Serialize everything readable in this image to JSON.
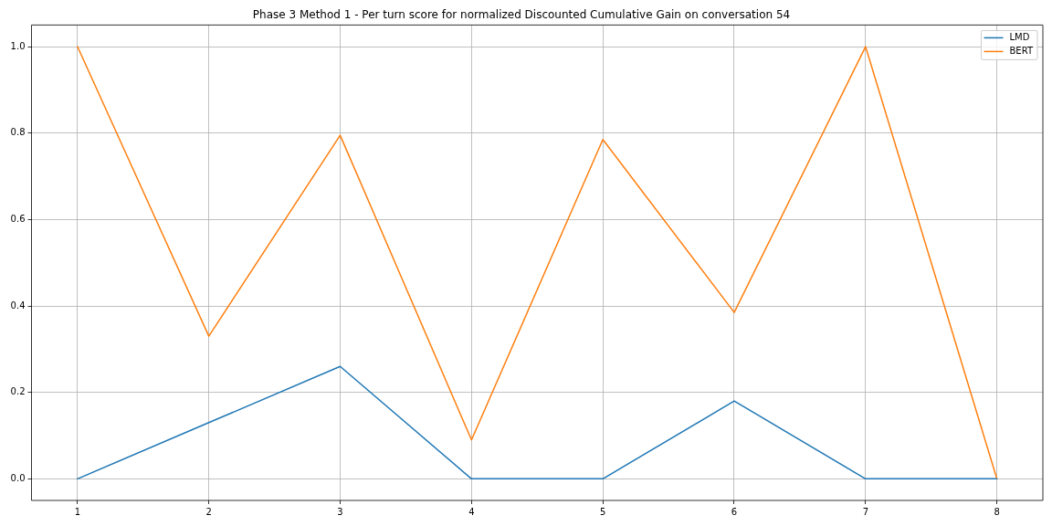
{
  "chart_data": {
    "type": "line",
    "title": "Phase 3 Method 1 - Per turn score for normalized Discounted Cumulative Gain on conversation 54",
    "x": [
      1,
      2,
      3,
      4,
      5,
      6,
      7,
      8
    ],
    "series": [
      {
        "name": "LMD",
        "color": "#1f77b4",
        "values": [
          0,
          0.13,
          0.26,
          0,
          0,
          0.18,
          0,
          0
        ]
      },
      {
        "name": "BERT",
        "color": "#ff7f0e",
        "values": [
          1.0,
          0.33,
          0.795,
          0.09,
          0.785,
          0.385,
          1.0,
          0
        ]
      }
    ],
    "xlim": [
      0.65,
      8.35
    ],
    "xticks": [
      1,
      2,
      3,
      4,
      5,
      6,
      7,
      8
    ],
    "ylim": [
      -0.05,
      1.05
    ],
    "yticks": [
      {
        "value": 0,
        "label": "0.0"
      },
      0.2,
      0.4,
      0.6,
      0.8,
      {
        "value": 1,
        "label": "1.0"
      }
    ],
    "grid": true,
    "legend": "top right"
  }
}
